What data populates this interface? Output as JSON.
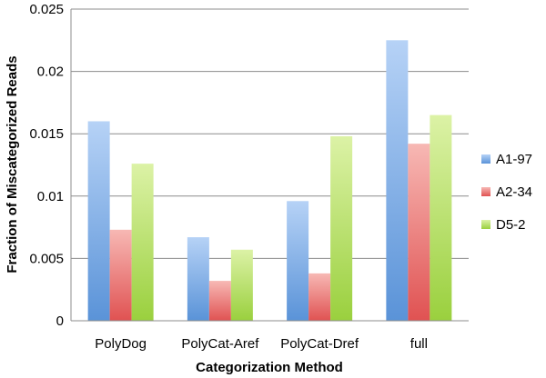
{
  "chart_data": {
    "type": "bar",
    "categories": [
      "PolyDog",
      "PolyCat-Aref",
      "PolyCat-Dref",
      "full"
    ],
    "series": [
      {
        "name": "A1-97",
        "values": [
          0.016,
          0.0067,
          0.0096,
          0.0225
        ],
        "color": "#5a93d8",
        "color_light": "#b6d2f6"
      },
      {
        "name": "A2-34",
        "values": [
          0.0073,
          0.0032,
          0.0038,
          0.0142
        ],
        "color": "#e05252",
        "color_light": "#f7b8b4"
      },
      {
        "name": "D5-2",
        "values": [
          0.0126,
          0.0057,
          0.0148,
          0.0165
        ],
        "color": "#9ad03e",
        "color_light": "#dcf2a6"
      }
    ],
    "xlabel": "Categorization Method",
    "ylabel": "Fraction of Miscategorized Reads",
    "ylim": [
      0,
      0.025
    ],
    "yticks": [
      "0",
      "0.005",
      "0.01",
      "0.015",
      "0.02",
      "0.025"
    ],
    "ytick_values": [
      0,
      0.005,
      0.01,
      0.015,
      0.02,
      0.025
    ],
    "grid": true,
    "legend_position": "right"
  }
}
